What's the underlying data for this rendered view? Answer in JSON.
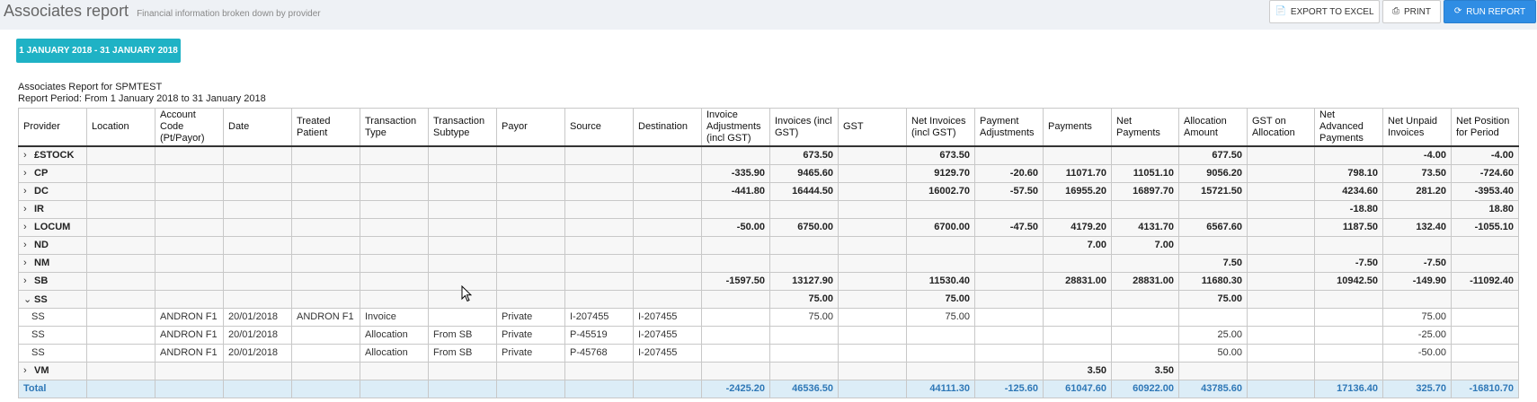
{
  "header": {
    "title": "Associates report",
    "subtitle": "Financial information broken down by provider",
    "export_label": "EXPORT TO EXCEL",
    "print_label": "PRINT",
    "run_label": "RUN REPORT"
  },
  "period_button": "1 JANUARY 2018 - 31 JANUARY 2018",
  "report": {
    "title": "Associates Report for SPMTEST",
    "period": "Report Period: From 1 January 2018 to 31 January 2018"
  },
  "columns": [
    "Provider",
    "Location",
    "Account Code (Pt/Payor)",
    "Date",
    "Treated Patient",
    "Transaction Type",
    "Transaction Subtype",
    "Payor",
    "Source",
    "Destination",
    "Invoice Adjustments (incl GST)",
    "Invoices (incl GST)",
    "GST",
    "Net Invoices (incl GST)",
    "Payment Adjustments",
    "Payments",
    "Net Payments",
    "Allocation Amount",
    "GST on Allocation",
    "Net Advanced Payments",
    "Net Unpaid Invoices",
    "Net Position for Period"
  ],
  "rows": [
    {
      "type": "group",
      "chevron": "›",
      "cells": [
        "£STOCK",
        "",
        "",
        "",
        "",
        "",
        "",
        "",
        "",
        "",
        "",
        "673.50",
        "",
        "673.50",
        "",
        "",
        "",
        "677.50",
        "",
        "",
        "-4.00",
        "-4.00"
      ]
    },
    {
      "type": "group",
      "chevron": "›",
      "cells": [
        "CP",
        "",
        "",
        "",
        "",
        "",
        "",
        "",
        "",
        "",
        "-335.90",
        "9465.60",
        "",
        "9129.70",
        "-20.60",
        "11071.70",
        "11051.10",
        "9056.20",
        "",
        "798.10",
        "73.50",
        "-724.60"
      ]
    },
    {
      "type": "group",
      "chevron": "›",
      "cells": [
        "DC",
        "",
        "",
        "",
        "",
        "",
        "",
        "",
        "",
        "",
        "-441.80",
        "16444.50",
        "",
        "16002.70",
        "-57.50",
        "16955.20",
        "16897.70",
        "15721.50",
        "",
        "4234.60",
        "281.20",
        "-3953.40"
      ]
    },
    {
      "type": "group",
      "chevron": "›",
      "cells": [
        "IR",
        "",
        "",
        "",
        "",
        "",
        "",
        "",
        "",
        "",
        "",
        "",
        "",
        "",
        "",
        "",
        "",
        "",
        "",
        "-18.80",
        "",
        "18.80"
      ]
    },
    {
      "type": "group",
      "chevron": "›",
      "cells": [
        "LOCUM",
        "",
        "",
        "",
        "",
        "",
        "",
        "",
        "",
        "",
        "-50.00",
        "6750.00",
        "",
        "6700.00",
        "-47.50",
        "4179.20",
        "4131.70",
        "6567.60",
        "",
        "1187.50",
        "132.40",
        "-1055.10"
      ]
    },
    {
      "type": "group",
      "chevron": "›",
      "cells": [
        "ND",
        "",
        "",
        "",
        "",
        "",
        "",
        "",
        "",
        "",
        "",
        "",
        "",
        "",
        "",
        "7.00",
        "7.00",
        "",
        "",
        "",
        "",
        ""
      ]
    },
    {
      "type": "group",
      "chevron": "›",
      "cells": [
        "NM",
        "",
        "",
        "",
        "",
        "",
        "",
        "",
        "",
        "",
        "",
        "",
        "",
        "",
        "",
        "",
        "",
        "7.50",
        "",
        "-7.50",
        "-7.50",
        ""
      ]
    },
    {
      "type": "group",
      "chevron": "›",
      "cells": [
        "SB",
        "",
        "",
        "",
        "",
        "",
        "",
        "",
        "",
        "",
        "-1597.50",
        "13127.90",
        "",
        "11530.40",
        "",
        "28831.00",
        "28831.00",
        "11680.30",
        "",
        "10942.50",
        "-149.90",
        "-11092.40"
      ]
    },
    {
      "type": "group",
      "chevron": "⌄",
      "cells": [
        "SS",
        "",
        "",
        "",
        "",
        "",
        "",
        "",
        "",
        "",
        "",
        "75.00",
        "",
        "75.00",
        "",
        "",
        "",
        "75.00",
        "",
        "",
        "",
        ""
      ]
    },
    {
      "type": "detail",
      "chevron": "",
      "cells": [
        "SS",
        "",
        "ANDRON F1",
        "20/01/2018",
        "ANDRON F1",
        "Invoice",
        "",
        "Private",
        "I-207455",
        "I-207455",
        "",
        "75.00",
        "",
        "75.00",
        "",
        "",
        "",
        "",
        "",
        "",
        "75.00",
        ""
      ]
    },
    {
      "type": "detail",
      "chevron": "",
      "cells": [
        "SS",
        "",
        "ANDRON F1",
        "20/01/2018",
        "",
        "Allocation",
        "From SB",
        "Private",
        "P-45519",
        "I-207455",
        "",
        "",
        "",
        "",
        "",
        "",
        "",
        "25.00",
        "",
        "",
        "-25.00",
        ""
      ]
    },
    {
      "type": "detail",
      "chevron": "",
      "cells": [
        "SS",
        "",
        "ANDRON F1",
        "20/01/2018",
        "",
        "Allocation",
        "From SB",
        "Private",
        "P-45768",
        "I-207455",
        "",
        "",
        "",
        "",
        "",
        "",
        "",
        "50.00",
        "",
        "",
        "-50.00",
        ""
      ]
    },
    {
      "type": "group",
      "chevron": "›",
      "cells": [
        "VM",
        "",
        "",
        "",
        "",
        "",
        "",
        "",
        "",
        "",
        "",
        "",
        "",
        "",
        "",
        "3.50",
        "3.50",
        "",
        "",
        "",
        "",
        ""
      ]
    },
    {
      "type": "total",
      "chevron": "",
      "cells": [
        "Total",
        "",
        "",
        "",
        "",
        "",
        "",
        "",
        "",
        "",
        "-2425.20",
        "46536.50",
        "",
        "44111.30",
        "-125.60",
        "61047.60",
        "60922.00",
        "43785.60",
        "",
        "17136.40",
        "325.70",
        "-16810.70"
      ]
    }
  ]
}
